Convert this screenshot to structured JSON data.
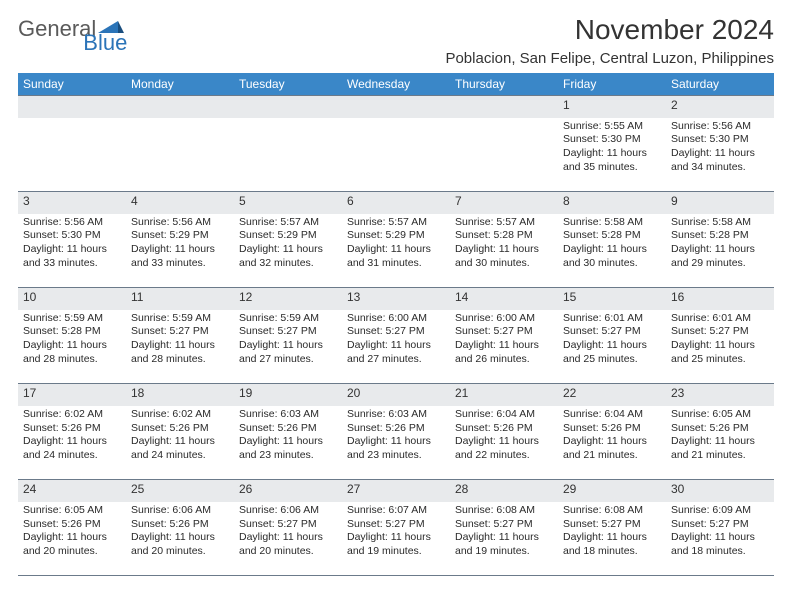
{
  "logo": {
    "general": "General",
    "blue": "Blue"
  },
  "title": "November 2024",
  "location": "Poblacion, San Felipe, Central Luzon, Philippines",
  "colors": {
    "header_bg": "#3a87c8",
    "header_text": "#ffffff",
    "daynum_bg": "#e8eaec",
    "border": "#6b7a8a",
    "text": "#2a2a2a",
    "logo_blue": "#2b74b8",
    "logo_gray": "#5a5a5a"
  },
  "weekdays": [
    "Sunday",
    "Monday",
    "Tuesday",
    "Wednesday",
    "Thursday",
    "Friday",
    "Saturday"
  ],
  "weeks": [
    [
      {
        "day": "",
        "sunrise": "",
        "sunset": "",
        "daylight": ""
      },
      {
        "day": "",
        "sunrise": "",
        "sunset": "",
        "daylight": ""
      },
      {
        "day": "",
        "sunrise": "",
        "sunset": "",
        "daylight": ""
      },
      {
        "day": "",
        "sunrise": "",
        "sunset": "",
        "daylight": ""
      },
      {
        "day": "",
        "sunrise": "",
        "sunset": "",
        "daylight": ""
      },
      {
        "day": "1",
        "sunrise": "Sunrise: 5:55 AM",
        "sunset": "Sunset: 5:30 PM",
        "daylight": "Daylight: 11 hours and 35 minutes."
      },
      {
        "day": "2",
        "sunrise": "Sunrise: 5:56 AM",
        "sunset": "Sunset: 5:30 PM",
        "daylight": "Daylight: 11 hours and 34 minutes."
      }
    ],
    [
      {
        "day": "3",
        "sunrise": "Sunrise: 5:56 AM",
        "sunset": "Sunset: 5:30 PM",
        "daylight": "Daylight: 11 hours and 33 minutes."
      },
      {
        "day": "4",
        "sunrise": "Sunrise: 5:56 AM",
        "sunset": "Sunset: 5:29 PM",
        "daylight": "Daylight: 11 hours and 33 minutes."
      },
      {
        "day": "5",
        "sunrise": "Sunrise: 5:57 AM",
        "sunset": "Sunset: 5:29 PM",
        "daylight": "Daylight: 11 hours and 32 minutes."
      },
      {
        "day": "6",
        "sunrise": "Sunrise: 5:57 AM",
        "sunset": "Sunset: 5:29 PM",
        "daylight": "Daylight: 11 hours and 31 minutes."
      },
      {
        "day": "7",
        "sunrise": "Sunrise: 5:57 AM",
        "sunset": "Sunset: 5:28 PM",
        "daylight": "Daylight: 11 hours and 30 minutes."
      },
      {
        "day": "8",
        "sunrise": "Sunrise: 5:58 AM",
        "sunset": "Sunset: 5:28 PM",
        "daylight": "Daylight: 11 hours and 30 minutes."
      },
      {
        "day": "9",
        "sunrise": "Sunrise: 5:58 AM",
        "sunset": "Sunset: 5:28 PM",
        "daylight": "Daylight: 11 hours and 29 minutes."
      }
    ],
    [
      {
        "day": "10",
        "sunrise": "Sunrise: 5:59 AM",
        "sunset": "Sunset: 5:28 PM",
        "daylight": "Daylight: 11 hours and 28 minutes."
      },
      {
        "day": "11",
        "sunrise": "Sunrise: 5:59 AM",
        "sunset": "Sunset: 5:27 PM",
        "daylight": "Daylight: 11 hours and 28 minutes."
      },
      {
        "day": "12",
        "sunrise": "Sunrise: 5:59 AM",
        "sunset": "Sunset: 5:27 PM",
        "daylight": "Daylight: 11 hours and 27 minutes."
      },
      {
        "day": "13",
        "sunrise": "Sunrise: 6:00 AM",
        "sunset": "Sunset: 5:27 PM",
        "daylight": "Daylight: 11 hours and 27 minutes."
      },
      {
        "day": "14",
        "sunrise": "Sunrise: 6:00 AM",
        "sunset": "Sunset: 5:27 PM",
        "daylight": "Daylight: 11 hours and 26 minutes."
      },
      {
        "day": "15",
        "sunrise": "Sunrise: 6:01 AM",
        "sunset": "Sunset: 5:27 PM",
        "daylight": "Daylight: 11 hours and 25 minutes."
      },
      {
        "day": "16",
        "sunrise": "Sunrise: 6:01 AM",
        "sunset": "Sunset: 5:27 PM",
        "daylight": "Daylight: 11 hours and 25 minutes."
      }
    ],
    [
      {
        "day": "17",
        "sunrise": "Sunrise: 6:02 AM",
        "sunset": "Sunset: 5:26 PM",
        "daylight": "Daylight: 11 hours and 24 minutes."
      },
      {
        "day": "18",
        "sunrise": "Sunrise: 6:02 AM",
        "sunset": "Sunset: 5:26 PM",
        "daylight": "Daylight: 11 hours and 24 minutes."
      },
      {
        "day": "19",
        "sunrise": "Sunrise: 6:03 AM",
        "sunset": "Sunset: 5:26 PM",
        "daylight": "Daylight: 11 hours and 23 minutes."
      },
      {
        "day": "20",
        "sunrise": "Sunrise: 6:03 AM",
        "sunset": "Sunset: 5:26 PM",
        "daylight": "Daylight: 11 hours and 23 minutes."
      },
      {
        "day": "21",
        "sunrise": "Sunrise: 6:04 AM",
        "sunset": "Sunset: 5:26 PM",
        "daylight": "Daylight: 11 hours and 22 minutes."
      },
      {
        "day": "22",
        "sunrise": "Sunrise: 6:04 AM",
        "sunset": "Sunset: 5:26 PM",
        "daylight": "Daylight: 11 hours and 21 minutes."
      },
      {
        "day": "23",
        "sunrise": "Sunrise: 6:05 AM",
        "sunset": "Sunset: 5:26 PM",
        "daylight": "Daylight: 11 hours and 21 minutes."
      }
    ],
    [
      {
        "day": "24",
        "sunrise": "Sunrise: 6:05 AM",
        "sunset": "Sunset: 5:26 PM",
        "daylight": "Daylight: 11 hours and 20 minutes."
      },
      {
        "day": "25",
        "sunrise": "Sunrise: 6:06 AM",
        "sunset": "Sunset: 5:26 PM",
        "daylight": "Daylight: 11 hours and 20 minutes."
      },
      {
        "day": "26",
        "sunrise": "Sunrise: 6:06 AM",
        "sunset": "Sunset: 5:27 PM",
        "daylight": "Daylight: 11 hours and 20 minutes."
      },
      {
        "day": "27",
        "sunrise": "Sunrise: 6:07 AM",
        "sunset": "Sunset: 5:27 PM",
        "daylight": "Daylight: 11 hours and 19 minutes."
      },
      {
        "day": "28",
        "sunrise": "Sunrise: 6:08 AM",
        "sunset": "Sunset: 5:27 PM",
        "daylight": "Daylight: 11 hours and 19 minutes."
      },
      {
        "day": "29",
        "sunrise": "Sunrise: 6:08 AM",
        "sunset": "Sunset: 5:27 PM",
        "daylight": "Daylight: 11 hours and 18 minutes."
      },
      {
        "day": "30",
        "sunrise": "Sunrise: 6:09 AM",
        "sunset": "Sunset: 5:27 PM",
        "daylight": "Daylight: 11 hours and 18 minutes."
      }
    ]
  ]
}
